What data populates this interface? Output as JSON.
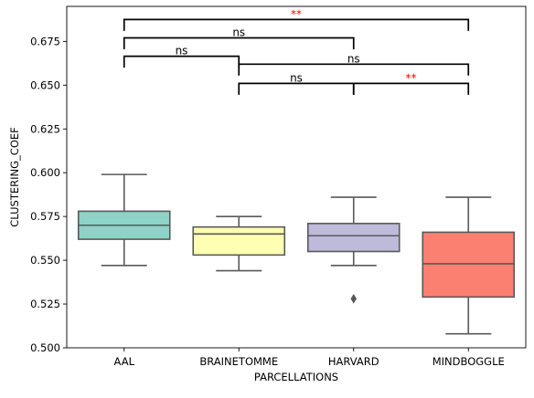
{
  "chart_data": {
    "type": "box",
    "title": "",
    "xlabel": "PARCELLATIONS",
    "ylabel": "CLUSTERING_COEF",
    "categories": [
      "AAL",
      "BRAINETOMME",
      "HARVARD",
      "MINDBOGGLE"
    ],
    "ylim": [
      0.5,
      0.695
    ],
    "yticks": [
      0.5,
      0.525,
      0.55,
      0.575,
      0.6,
      0.625,
      0.65,
      0.675
    ],
    "ytick_labels": [
      "0.500",
      "0.525",
      "0.550",
      "0.575",
      "0.600",
      "0.625",
      "0.650",
      "0.675"
    ],
    "grid": false,
    "boxes": [
      {
        "category": "AAL",
        "whisker_low": 0.547,
        "q1": 0.562,
        "median": 0.57,
        "q3": 0.578,
        "whisker_high": 0.599,
        "outliers": [],
        "color": "#8dd3c7"
      },
      {
        "category": "BRAINETOMME",
        "whisker_low": 0.544,
        "q1": 0.553,
        "median": 0.565,
        "q3": 0.569,
        "whisker_high": 0.575,
        "outliers": [],
        "color": "#ffffb3"
      },
      {
        "category": "HARVARD",
        "whisker_low": 0.547,
        "q1": 0.555,
        "median": 0.564,
        "q3": 0.571,
        "whisker_high": 0.586,
        "outliers": [
          0.528
        ],
        "color": "#bebada"
      },
      {
        "category": "MINDBOGGLE",
        "whisker_low": 0.508,
        "q1": 0.529,
        "median": 0.548,
        "q3": 0.566,
        "whisker_high": 0.586,
        "outliers": [],
        "color": "#fb8072"
      }
    ],
    "annotations": [
      {
        "from": 0,
        "to": 1,
        "y": 0.66,
        "height": 0.0065,
        "label": "ns",
        "label_color": "#000000"
      },
      {
        "from": 1,
        "to": 3,
        "y": 0.6555,
        "height": 0.0065,
        "label": "ns",
        "label_color": "#000000"
      },
      {
        "from": 0,
        "to": 2,
        "y": 0.6705,
        "height": 0.0065,
        "label": "ns",
        "label_color": "#000000"
      },
      {
        "from": 0,
        "to": 3,
        "y": 0.681,
        "height": 0.0065,
        "label": "**",
        "label_color": "#ff0000"
      },
      {
        "from": 1,
        "to": 2,
        "y": 0.6445,
        "height": 0.0065,
        "label": "ns",
        "label_color": "#000000"
      },
      {
        "from": 2,
        "to": 3,
        "y": 0.6445,
        "height": 0.0065,
        "label": "**",
        "label_color": "#ff0000"
      }
    ]
  }
}
